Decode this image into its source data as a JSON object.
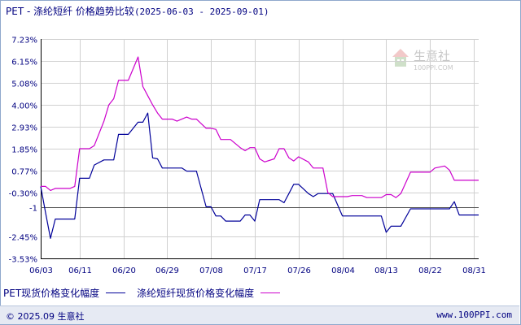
{
  "header": {
    "title": "PET - 涤纶短纤 价格趋势比较",
    "date_range": "(2025-06-03 - 2025-09-01)"
  },
  "watermark": {
    "brand": "生意社",
    "url": "100PPI.COM"
  },
  "footer": {
    "copyright": "© 2025.09 生意社",
    "site": "www.100PPI.com"
  },
  "colors": {
    "series1": "#000099",
    "series2": "#cc00cc",
    "grid": "#d0d0d0",
    "axis": "#000000",
    "text": "#000080"
  },
  "chart_data": {
    "type": "line",
    "xlabel": "",
    "ylabel": "",
    "y_unit": "%",
    "ylim": [
      -3.53,
      7.23
    ],
    "grid": true,
    "legend_position": "bottom-left",
    "y_ticks": [
      7.23,
      6.15,
      5.08,
      4.0,
      2.93,
      1.85,
      0.77,
      -0.3,
      -1.0,
      -2.45,
      -3.53
    ],
    "y_tick_labels": [
      "7.23%",
      "6.15%",
      "5.08%",
      "4.00%",
      "2.93%",
      "1.85%",
      "0.77%",
      "-0.30%",
      "-1",
      "-2.45%",
      "-3.53%"
    ],
    "x_range": [
      "2025-06-03",
      "2025-09-01"
    ],
    "x_ticks": [
      "06/03",
      "06/11",
      "06/20",
      "06/29",
      "07/08",
      "07/17",
      "07/26",
      "08/04",
      "08/13",
      "08/22",
      "08/31"
    ],
    "series": [
      {
        "name": "PET现货价格变化幅度",
        "points": [
          [
            "2025-06-03",
            0.0
          ],
          [
            "2025-06-04",
            -1.3
          ],
          [
            "2025-06-05",
            -2.55
          ],
          [
            "2025-06-06",
            -1.6
          ],
          [
            "2025-06-09",
            -1.6
          ],
          [
            "2025-06-10",
            -1.6
          ],
          [
            "2025-06-11",
            0.4
          ],
          [
            "2025-06-12",
            0.4
          ],
          [
            "2025-06-13",
            0.4
          ],
          [
            "2025-06-14",
            1.05
          ],
          [
            "2025-06-16",
            1.3
          ],
          [
            "2025-06-17",
            1.3
          ],
          [
            "2025-06-18",
            1.3
          ],
          [
            "2025-06-19",
            2.55
          ],
          [
            "2025-06-20",
            2.55
          ],
          [
            "2025-06-21",
            2.55
          ],
          [
            "2025-06-23",
            3.15
          ],
          [
            "2025-06-24",
            3.15
          ],
          [
            "2025-06-25",
            3.6
          ],
          [
            "2025-06-26",
            1.4
          ],
          [
            "2025-06-27",
            1.35
          ],
          [
            "2025-06-28",
            0.9
          ],
          [
            "2025-06-30",
            0.9
          ],
          [
            "2025-07-01",
            0.9
          ],
          [
            "2025-07-02",
            0.9
          ],
          [
            "2025-07-03",
            0.75
          ],
          [
            "2025-07-04",
            0.75
          ],
          [
            "2025-07-05",
            0.75
          ],
          [
            "2025-07-07",
            -1.0
          ],
          [
            "2025-07-08",
            -1.0
          ],
          [
            "2025-07-09",
            -1.45
          ],
          [
            "2025-07-10",
            -1.45
          ],
          [
            "2025-07-11",
            -1.7
          ],
          [
            "2025-07-12",
            -1.7
          ],
          [
            "2025-07-14",
            -1.7
          ],
          [
            "2025-07-15",
            -1.4
          ],
          [
            "2025-07-16",
            -1.4
          ],
          [
            "2025-07-17",
            -1.7
          ],
          [
            "2025-07-18",
            -0.65
          ],
          [
            "2025-07-19",
            -0.65
          ],
          [
            "2025-07-21",
            -0.65
          ],
          [
            "2025-07-22",
            -0.65
          ],
          [
            "2025-07-23",
            -0.8
          ],
          [
            "2025-07-24",
            -0.35
          ],
          [
            "2025-07-25",
            0.1
          ],
          [
            "2025-07-26",
            0.1
          ],
          [
            "2025-07-28",
            -0.35
          ],
          [
            "2025-07-29",
            -0.5
          ],
          [
            "2025-07-30",
            -0.35
          ],
          [
            "2025-07-31",
            -0.35
          ],
          [
            "2025-08-01",
            -0.35
          ],
          [
            "2025-08-02",
            -0.35
          ],
          [
            "2025-08-04",
            -1.45
          ],
          [
            "2025-08-05",
            -1.45
          ],
          [
            "2025-08-06",
            -1.45
          ],
          [
            "2025-08-07",
            -1.45
          ],
          [
            "2025-08-08",
            -1.45
          ],
          [
            "2025-08-09",
            -1.45
          ],
          [
            "2025-08-11",
            -1.45
          ],
          [
            "2025-08-12",
            -1.45
          ],
          [
            "2025-08-13",
            -2.25
          ],
          [
            "2025-08-14",
            -1.95
          ],
          [
            "2025-08-15",
            -1.95
          ],
          [
            "2025-08-16",
            -1.95
          ],
          [
            "2025-08-18",
            -1.1
          ],
          [
            "2025-08-19",
            -1.1
          ],
          [
            "2025-08-20",
            -1.1
          ],
          [
            "2025-08-21",
            -1.1
          ],
          [
            "2025-08-22",
            -1.1
          ],
          [
            "2025-08-23",
            -1.1
          ],
          [
            "2025-08-25",
            -1.1
          ],
          [
            "2025-08-26",
            -1.1
          ],
          [
            "2025-08-27",
            -0.75
          ],
          [
            "2025-08-28",
            -1.4
          ],
          [
            "2025-08-29",
            -1.4
          ],
          [
            "2025-08-30",
            -1.4
          ],
          [
            "2025-09-01",
            -1.4
          ]
        ]
      },
      {
        "name": "涤纶短纤现货价格变化幅度",
        "points": [
          [
            "2025-06-03",
            0.0
          ],
          [
            "2025-06-04",
            0.0
          ],
          [
            "2025-06-05",
            -0.2
          ],
          [
            "2025-06-06",
            -0.1
          ],
          [
            "2025-06-09",
            -0.1
          ],
          [
            "2025-06-10",
            0.0
          ],
          [
            "2025-06-11",
            1.85
          ],
          [
            "2025-06-12",
            1.85
          ],
          [
            "2025-06-13",
            1.85
          ],
          [
            "2025-06-14",
            2.0
          ],
          [
            "2025-06-16",
            3.2
          ],
          [
            "2025-06-17",
            4.0
          ],
          [
            "2025-06-18",
            4.3
          ],
          [
            "2025-06-19",
            5.2
          ],
          [
            "2025-06-20",
            5.2
          ],
          [
            "2025-06-21",
            5.2
          ],
          [
            "2025-06-23",
            6.35
          ],
          [
            "2025-06-24",
            4.9
          ],
          [
            "2025-06-25",
            4.45
          ],
          [
            "2025-06-26",
            4.0
          ],
          [
            "2025-06-27",
            3.6
          ],
          [
            "2025-06-28",
            3.3
          ],
          [
            "2025-06-30",
            3.3
          ],
          [
            "2025-07-01",
            3.2
          ],
          [
            "2025-07-02",
            3.3
          ],
          [
            "2025-07-03",
            3.4
          ],
          [
            "2025-07-04",
            3.3
          ],
          [
            "2025-07-05",
            3.3
          ],
          [
            "2025-07-07",
            2.85
          ],
          [
            "2025-07-08",
            2.85
          ],
          [
            "2025-07-09",
            2.8
          ],
          [
            "2025-07-10",
            2.3
          ],
          [
            "2025-07-11",
            2.3
          ],
          [
            "2025-07-12",
            2.3
          ],
          [
            "2025-07-14",
            1.9
          ],
          [
            "2025-07-15",
            1.75
          ],
          [
            "2025-07-16",
            1.9
          ],
          [
            "2025-07-17",
            1.9
          ],
          [
            "2025-07-18",
            1.35
          ],
          [
            "2025-07-19",
            1.2
          ],
          [
            "2025-07-21",
            1.35
          ],
          [
            "2025-07-22",
            1.85
          ],
          [
            "2025-07-23",
            1.85
          ],
          [
            "2025-07-24",
            1.4
          ],
          [
            "2025-07-25",
            1.25
          ],
          [
            "2025-07-26",
            1.45
          ],
          [
            "2025-07-28",
            1.2
          ],
          [
            "2025-07-29",
            0.9
          ],
          [
            "2025-07-30",
            0.9
          ],
          [
            "2025-07-31",
            0.9
          ],
          [
            "2025-08-01",
            -0.3
          ],
          [
            "2025-08-02",
            -0.5
          ],
          [
            "2025-08-04",
            -0.5
          ],
          [
            "2025-08-05",
            -0.5
          ],
          [
            "2025-08-06",
            -0.45
          ],
          [
            "2025-08-07",
            -0.45
          ],
          [
            "2025-08-08",
            -0.45
          ],
          [
            "2025-08-09",
            -0.55
          ],
          [
            "2025-08-11",
            -0.55
          ],
          [
            "2025-08-12",
            -0.55
          ],
          [
            "2025-08-13",
            -0.4
          ],
          [
            "2025-08-14",
            -0.4
          ],
          [
            "2025-08-15",
            -0.55
          ],
          [
            "2025-08-16",
            -0.35
          ],
          [
            "2025-08-18",
            0.7
          ],
          [
            "2025-08-19",
            0.7
          ],
          [
            "2025-08-20",
            0.7
          ],
          [
            "2025-08-21",
            0.7
          ],
          [
            "2025-08-22",
            0.7
          ],
          [
            "2025-08-23",
            0.9
          ],
          [
            "2025-08-25",
            1.0
          ],
          [
            "2025-08-26",
            0.8
          ],
          [
            "2025-08-27",
            0.3
          ],
          [
            "2025-08-28",
            0.3
          ],
          [
            "2025-08-29",
            0.3
          ],
          [
            "2025-08-30",
            0.3
          ],
          [
            "2025-09-01",
            0.3
          ]
        ]
      }
    ]
  }
}
